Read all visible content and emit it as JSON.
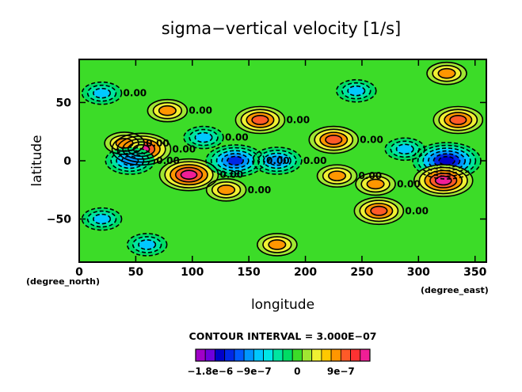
{
  "chart_data": {
    "type": "heatmap",
    "title": "sigma−vertical velocity [1/s]",
    "xlabel": "longitude",
    "ylabel": "latitude",
    "x_unit": "(degree_east)",
    "y_unit": "(degree_north)",
    "xlim": [
      0,
      360
    ],
    "ylim": [
      -87,
      87
    ],
    "xticks": [
      0,
      50,
      100,
      150,
      200,
      250,
      300,
      350
    ],
    "yticks": [
      -50,
      0,
      50
    ],
    "xtick_labels": [
      "0",
      "50",
      "100",
      "150",
      "200",
      "250",
      "300",
      "350"
    ],
    "ytick_labels": [
      "−50",
      "0",
      "50"
    ],
    "contour_interval_label": "CONTOUR INTERVAL = 3.000E−07",
    "contour_interval": 3e-07,
    "contour_line_labels": [
      "0.00",
      "0.00",
      "0.00",
      "0.00",
      "0.00",
      "0.00",
      "0.00",
      "0.00",
      "0.00",
      "0.00",
      "0.00",
      "0.00",
      "0.00",
      "0.00",
      "0.00"
    ],
    "colorbar": {
      "tick_labels": [
        "−1.8e−6",
        "−9e−7",
        "0",
        "9e−7"
      ],
      "tick_values": [
        -1.8e-06,
        -9e-07,
        0,
        9e-07
      ],
      "range": [
        -2.1e-06,
        1.5e-06
      ],
      "colors": [
        "#a000c8",
        "#6e00dc",
        "#0000c8",
        "#0028e6",
        "#005aff",
        "#0096ff",
        "#00c8ff",
        "#00e6e6",
        "#00e6a0",
        "#00dc64",
        "#3cdc28",
        "#a0e632",
        "#f0f032",
        "#ffc800",
        "#ff9600",
        "#ff5a28",
        "#ff3232",
        "#f01e96"
      ]
    },
    "features": [
      {
        "lon": 20,
        "lat": 58,
        "value": -6e-07
      },
      {
        "lon": 55,
        "lat": 10,
        "value": 1.2e-06
      },
      {
        "lon": 40,
        "lat": 15,
        "value": 6e-07
      },
      {
        "lon": 45,
        "lat": 0,
        "value": -9e-07
      },
      {
        "lon": 78,
        "lat": 43,
        "value": 6e-07
      },
      {
        "lon": 97,
        "lat": -12,
        "value": 1.2e-06
      },
      {
        "lon": 110,
        "lat": 20,
        "value": -6e-07
      },
      {
        "lon": 138,
        "lat": 0,
        "value": -1.2e-06
      },
      {
        "lon": 175,
        "lat": 0,
        "value": -9e-07
      },
      {
        "lon": 160,
        "lat": 35,
        "value": 9e-07
      },
      {
        "lon": 130,
        "lat": -25,
        "value": 6e-07
      },
      {
        "lon": 225,
        "lat": 18,
        "value": 9e-07
      },
      {
        "lon": 228,
        "lat": -13,
        "value": 6e-07
      },
      {
        "lon": 262,
        "lat": -20,
        "value": 6e-07
      },
      {
        "lon": 265,
        "lat": -43,
        "value": 9e-07
      },
      {
        "lon": 288,
        "lat": 10,
        "value": -6e-07
      },
      {
        "lon": 325,
        "lat": 0,
        "value": -1.5e-06
      },
      {
        "lon": 322,
        "lat": -17,
        "value": 1.2e-06
      },
      {
        "lon": 335,
        "lat": 35,
        "value": 9e-07
      },
      {
        "lon": 325,
        "lat": 75,
        "value": 6e-07
      },
      {
        "lon": 175,
        "lat": -72,
        "value": 6e-07
      },
      {
        "lon": 60,
        "lat": -72,
        "value": -6e-07
      },
      {
        "lon": 245,
        "lat": 60,
        "value": -6e-07
      },
      {
        "lon": 20,
        "lat": -50,
        "value": -6e-07
      }
    ]
  }
}
